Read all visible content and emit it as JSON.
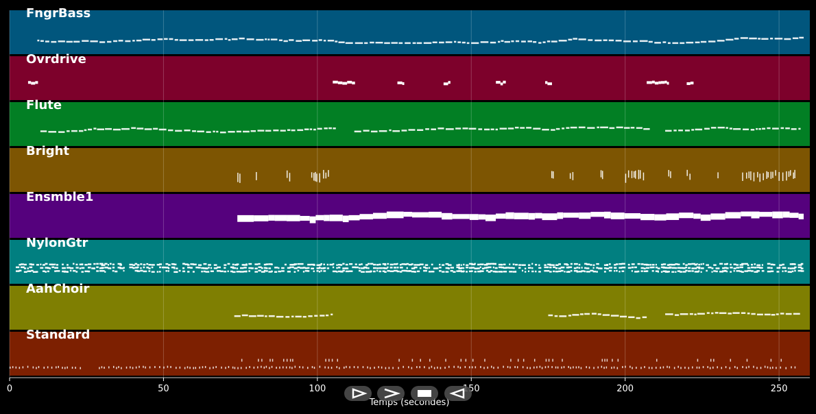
{
  "xaxis": {
    "ticks": [
      0,
      50,
      100,
      150,
      200,
      250
    ],
    "title": "Temps (secondes)",
    "range": [
      0,
      260
    ]
  },
  "tracks": [
    {
      "name": "FngrBass",
      "color": "#01567d",
      "style": "line",
      "segments": [
        [
          9,
          258
        ]
      ],
      "density": 5
    },
    {
      "name": "Ovrdrive",
      "color": "#7d012b",
      "style": "blocks",
      "segments": [
        [
          6,
          9
        ],
        [
          105,
          112
        ],
        [
          126,
          128
        ],
        [
          141,
          143
        ],
        [
          158,
          161
        ],
        [
          174,
          176
        ],
        [
          207,
          214
        ],
        [
          220,
          222
        ]
      ],
      "density": 3
    },
    {
      "name": "Flute",
      "color": "#027f24",
      "style": "line",
      "segments": [
        [
          10,
          106
        ],
        [
          112,
          208
        ],
        [
          213,
          257
        ]
      ],
      "density": 4
    },
    {
      "name": "Bright",
      "color": "#7d5502",
      "style": "ticks",
      "segments": [
        [
          74,
          75
        ],
        [
          80,
          81
        ],
        [
          90,
          91
        ],
        [
          98,
          104
        ],
        [
          176,
          177
        ],
        [
          182,
          183
        ],
        [
          192,
          193
        ],
        [
          200,
          206
        ],
        [
          214,
          215
        ],
        [
          220,
          221
        ],
        [
          230,
          231
        ],
        [
          238,
          256
        ]
      ],
      "density": 1
    },
    {
      "name": "Ensmble1",
      "color": "#55017d",
      "style": "thick",
      "segments": [
        [
          74,
          258
        ]
      ],
      "density": 2
    },
    {
      "name": "NylonGtr",
      "color": "#017f80",
      "style": "dense",
      "segments": [
        [
          2,
          258
        ]
      ],
      "density": 2
    },
    {
      "name": "AahChoir",
      "color": "#7f7f02",
      "style": "line",
      "segments": [
        [
          73,
          105
        ],
        [
          175,
          207
        ],
        [
          213,
          257
        ]
      ],
      "density": 4
    },
    {
      "name": "Standard",
      "color": "#7d2001",
      "style": "dots",
      "segments": [
        [
          0,
          24
        ],
        [
          29,
          73
        ],
        [
          73,
          256
        ]
      ],
      "density": 3
    }
  ],
  "controls": [
    {
      "name": "play-outline-button",
      "icon": "play-outline-icon"
    },
    {
      "name": "fast-forward-button",
      "icon": "chevron-right-icon"
    },
    {
      "name": "stop-button",
      "icon": "stop-icon"
    },
    {
      "name": "rewind-button",
      "icon": "rewind-icon"
    }
  ]
}
